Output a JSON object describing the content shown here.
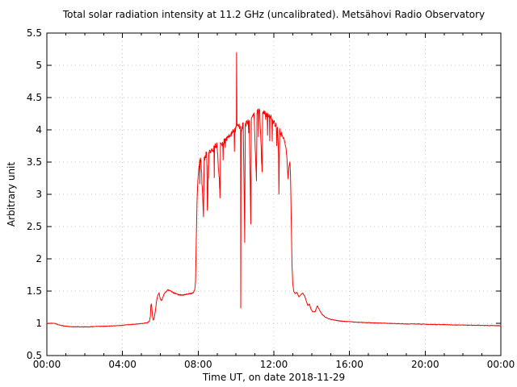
{
  "colors": {
    "line": "#ff0000",
    "grid": "#c8c8c8",
    "axis": "#000000",
    "background": "#ffffff",
    "text": "#000000"
  },
  "chart_data": {
    "type": "line",
    "title": "Total solar radiation intensity at 11.2 GHz (uncalibrated). Metsähovi Radio Observatory",
    "xlabel": "Time UT, on date 2018-11-29",
    "ylabel": "Arbitrary unit",
    "xlim": [
      0,
      24
    ],
    "ylim": [
      0.5,
      5.5
    ],
    "grid": "dotted-at-major-ticks",
    "legend_position": "none",
    "x_minor_step": 1,
    "x_major_ticks": [
      {
        "t": 0,
        "label": "00:00"
      },
      {
        "t": 4,
        "label": "04:00"
      },
      {
        "t": 8,
        "label": "08:00"
      },
      {
        "t": 12,
        "label": "12:00"
      },
      {
        "t": 16,
        "label": "16:00"
      },
      {
        "t": 20,
        "label": "20:00"
      },
      {
        "t": 24,
        "label": "00:00"
      }
    ],
    "y_ticks": [
      {
        "v": 0.5,
        "label": "0.5"
      },
      {
        "v": 1,
        "label": "1"
      },
      {
        "v": 1.5,
        "label": "1.5"
      },
      {
        "v": 2,
        "label": "2"
      },
      {
        "v": 2.5,
        "label": "2.5"
      },
      {
        "v": 3,
        "label": "3"
      },
      {
        "v": 3.5,
        "label": "3.5"
      },
      {
        "v": 4,
        "label": "4"
      },
      {
        "v": 4.5,
        "label": "4.5"
      },
      {
        "v": 5,
        "label": "5"
      },
      {
        "v": 5.5,
        "label": "5.5"
      }
    ],
    "series": [
      {
        "name": "total-solar-radiation-11.2GHz",
        "color": "#ff0000",
        "sample_minutes": 1,
        "anchors": [
          [
            0.0,
            1.0
          ],
          [
            0.4,
            1.0
          ],
          [
            0.7,
            0.97
          ],
          [
            1.0,
            0.955
          ],
          [
            1.4,
            0.945
          ],
          [
            1.8,
            0.945
          ],
          [
            2.2,
            0.945
          ],
          [
            2.6,
            0.95
          ],
          [
            3.0,
            0.955
          ],
          [
            3.5,
            0.96
          ],
          [
            4.0,
            0.97
          ],
          [
            4.4,
            0.98
          ],
          [
            4.8,
            0.99
          ],
          [
            5.1,
            1.0
          ],
          [
            5.3,
            1.01
          ],
          [
            5.42,
            1.03
          ],
          [
            5.47,
            1.1
          ],
          [
            5.5,
            1.28
          ],
          [
            5.53,
            1.3
          ],
          [
            5.57,
            1.16
          ],
          [
            5.62,
            1.05
          ],
          [
            5.67,
            1.07
          ],
          [
            5.74,
            1.2
          ],
          [
            5.8,
            1.35
          ],
          [
            5.87,
            1.44
          ],
          [
            5.93,
            1.47
          ],
          [
            6.0,
            1.38
          ],
          [
            6.07,
            1.35
          ],
          [
            6.15,
            1.42
          ],
          [
            6.25,
            1.48
          ],
          [
            6.4,
            1.52
          ],
          [
            6.55,
            1.5
          ],
          [
            6.7,
            1.47
          ],
          [
            6.85,
            1.46
          ],
          [
            7.0,
            1.44
          ],
          [
            7.2,
            1.44
          ],
          [
            7.4,
            1.45
          ],
          [
            7.6,
            1.46
          ],
          [
            7.75,
            1.48
          ],
          [
            7.82,
            1.52
          ],
          [
            7.86,
            1.65
          ],
          [
            7.9,
            2.3
          ],
          [
            7.94,
            2.9
          ],
          [
            7.98,
            3.2
          ],
          [
            8.03,
            3.4
          ],
          [
            8.08,
            3.5
          ],
          [
            8.15,
            3.55
          ],
          [
            8.28,
            2.65
          ],
          [
            8.32,
            3.58
          ],
          [
            8.45,
            3.62
          ],
          [
            8.5,
            2.8
          ],
          [
            8.54,
            3.64
          ],
          [
            8.7,
            3.68
          ],
          [
            8.85,
            3.72
          ],
          [
            9.0,
            3.75
          ],
          [
            9.14,
            3.1
          ],
          [
            9.18,
            3.78
          ],
          [
            9.3,
            3.8
          ],
          [
            9.45,
            3.85
          ],
          [
            9.6,
            3.9
          ],
          [
            9.75,
            3.93
          ],
          [
            9.9,
            3.98
          ],
          [
            10.0,
            4.02
          ],
          [
            10.02,
            4.05
          ],
          [
            10.03,
            5.22
          ],
          [
            10.05,
            4.08
          ],
          [
            10.15,
            4.05
          ],
          [
            10.24,
            4.05
          ],
          [
            10.25,
            1.25
          ],
          [
            10.27,
            4.0
          ],
          [
            10.38,
            4.08
          ],
          [
            10.46,
            2.3
          ],
          [
            10.49,
            4.1
          ],
          [
            10.6,
            4.12
          ],
          [
            10.7,
            4.15
          ],
          [
            10.78,
            2.55
          ],
          [
            10.81,
            4.18
          ],
          [
            10.95,
            4.25
          ],
          [
            11.08,
            3.2
          ],
          [
            11.11,
            4.28
          ],
          [
            11.25,
            4.3
          ],
          [
            11.38,
            3.35
          ],
          [
            11.41,
            4.28
          ],
          [
            11.55,
            4.27
          ],
          [
            11.7,
            4.22
          ],
          [
            11.85,
            4.18
          ],
          [
            12.0,
            4.12
          ],
          [
            12.1,
            4.08
          ],
          [
            12.2,
            4.02
          ],
          [
            12.28,
            3.3
          ],
          [
            12.31,
            3.98
          ],
          [
            12.45,
            3.92
          ],
          [
            12.55,
            3.85
          ],
          [
            12.65,
            3.7
          ],
          [
            12.7,
            3.5
          ],
          [
            12.75,
            3.25
          ],
          [
            12.8,
            3.45
          ],
          [
            12.85,
            3.5
          ],
          [
            12.88,
            3.3
          ],
          [
            12.92,
            2.6
          ],
          [
            12.96,
            1.9
          ],
          [
            13.0,
            1.62
          ],
          [
            13.05,
            1.5
          ],
          [
            13.12,
            1.46
          ],
          [
            13.22,
            1.48
          ],
          [
            13.32,
            1.41
          ],
          [
            13.42,
            1.44
          ],
          [
            13.52,
            1.47
          ],
          [
            13.62,
            1.43
          ],
          [
            13.72,
            1.34
          ],
          [
            13.8,
            1.27
          ],
          [
            13.88,
            1.3
          ],
          [
            13.96,
            1.22
          ],
          [
            14.05,
            1.18
          ],
          [
            14.18,
            1.18
          ],
          [
            14.3,
            1.27
          ],
          [
            14.42,
            1.2
          ],
          [
            14.55,
            1.14
          ],
          [
            14.7,
            1.1
          ],
          [
            14.9,
            1.07
          ],
          [
            15.1,
            1.055
          ],
          [
            15.4,
            1.04
          ],
          [
            15.7,
            1.03
          ],
          [
            16.0,
            1.025
          ],
          [
            16.5,
            1.015
          ],
          [
            17.0,
            1.01
          ],
          [
            17.5,
            1.005
          ],
          [
            18.0,
            1.0
          ],
          [
            18.5,
            0.995
          ],
          [
            19.0,
            0.99
          ],
          [
            19.5,
            0.99
          ],
          [
            20.0,
            0.985
          ],
          [
            20.5,
            0.982
          ],
          [
            21.0,
            0.98
          ],
          [
            21.5,
            0.975
          ],
          [
            22.0,
            0.972
          ],
          [
            22.5,
            0.97
          ],
          [
            23.0,
            0.968
          ],
          [
            23.5,
            0.965
          ],
          [
            24.0,
            0.962
          ]
        ],
        "noise": {
          "seed": 20181129,
          "segments": [
            {
              "from": 0,
              "to": 5.42,
              "amp": 0.006
            },
            {
              "from": 5.9,
              "to": 7.84,
              "amp": 0.012
            },
            {
              "from": 8.05,
              "to": 12.5,
              "amp": 0.06,
              "down_p": 0.08,
              "down_amp": 0.45
            },
            {
              "from": 12.5,
              "to": 12.9,
              "amp": 0.04
            },
            {
              "from": 13.05,
              "to": 24,
              "amp": 0.006
            }
          ]
        }
      }
    ]
  }
}
